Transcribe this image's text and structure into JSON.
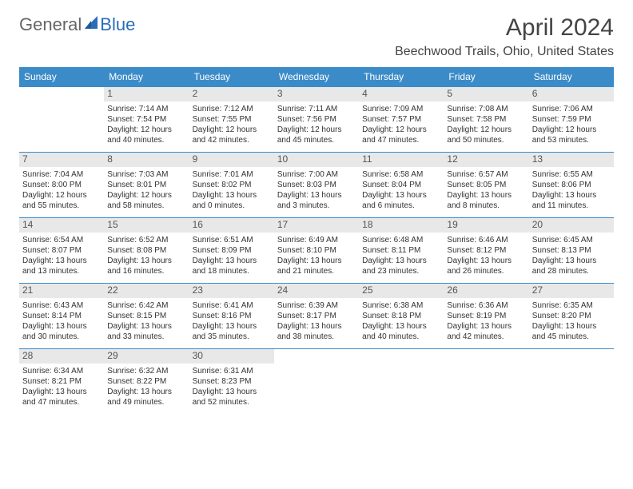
{
  "logo": {
    "text1": "General",
    "text2": "Blue"
  },
  "title": "April 2024",
  "location": "Beechwood Trails, Ohio, United States",
  "colors": {
    "header_bg": "#3b8bc9",
    "header_text": "#ffffff",
    "daynum_bg": "#e8e8e8",
    "rule": "#3b8bc9",
    "logo_blue": "#2a6db8",
    "text": "#333333"
  },
  "weekdays": [
    "Sunday",
    "Monday",
    "Tuesday",
    "Wednesday",
    "Thursday",
    "Friday",
    "Saturday"
  ],
  "grid": {
    "leading_blanks": 0,
    "days": [
      null,
      {
        "n": "1",
        "sr": "7:14 AM",
        "ss": "7:54 PM",
        "dl": "12 hours and 40 minutes."
      },
      {
        "n": "2",
        "sr": "7:12 AM",
        "ss": "7:55 PM",
        "dl": "12 hours and 42 minutes."
      },
      {
        "n": "3",
        "sr": "7:11 AM",
        "ss": "7:56 PM",
        "dl": "12 hours and 45 minutes."
      },
      {
        "n": "4",
        "sr": "7:09 AM",
        "ss": "7:57 PM",
        "dl": "12 hours and 47 minutes."
      },
      {
        "n": "5",
        "sr": "7:08 AM",
        "ss": "7:58 PM",
        "dl": "12 hours and 50 minutes."
      },
      {
        "n": "6",
        "sr": "7:06 AM",
        "ss": "7:59 PM",
        "dl": "12 hours and 53 minutes."
      },
      {
        "n": "7",
        "sr": "7:04 AM",
        "ss": "8:00 PM",
        "dl": "12 hours and 55 minutes."
      },
      {
        "n": "8",
        "sr": "7:03 AM",
        "ss": "8:01 PM",
        "dl": "12 hours and 58 minutes."
      },
      {
        "n": "9",
        "sr": "7:01 AM",
        "ss": "8:02 PM",
        "dl": "13 hours and 0 minutes."
      },
      {
        "n": "10",
        "sr": "7:00 AM",
        "ss": "8:03 PM",
        "dl": "13 hours and 3 minutes."
      },
      {
        "n": "11",
        "sr": "6:58 AM",
        "ss": "8:04 PM",
        "dl": "13 hours and 6 minutes."
      },
      {
        "n": "12",
        "sr": "6:57 AM",
        "ss": "8:05 PM",
        "dl": "13 hours and 8 minutes."
      },
      {
        "n": "13",
        "sr": "6:55 AM",
        "ss": "8:06 PM",
        "dl": "13 hours and 11 minutes."
      },
      {
        "n": "14",
        "sr": "6:54 AM",
        "ss": "8:07 PM",
        "dl": "13 hours and 13 minutes."
      },
      {
        "n": "15",
        "sr": "6:52 AM",
        "ss": "8:08 PM",
        "dl": "13 hours and 16 minutes."
      },
      {
        "n": "16",
        "sr": "6:51 AM",
        "ss": "8:09 PM",
        "dl": "13 hours and 18 minutes."
      },
      {
        "n": "17",
        "sr": "6:49 AM",
        "ss": "8:10 PM",
        "dl": "13 hours and 21 minutes."
      },
      {
        "n": "18",
        "sr": "6:48 AM",
        "ss": "8:11 PM",
        "dl": "13 hours and 23 minutes."
      },
      {
        "n": "19",
        "sr": "6:46 AM",
        "ss": "8:12 PM",
        "dl": "13 hours and 26 minutes."
      },
      {
        "n": "20",
        "sr": "6:45 AM",
        "ss": "8:13 PM",
        "dl": "13 hours and 28 minutes."
      },
      {
        "n": "21",
        "sr": "6:43 AM",
        "ss": "8:14 PM",
        "dl": "13 hours and 30 minutes."
      },
      {
        "n": "22",
        "sr": "6:42 AM",
        "ss": "8:15 PM",
        "dl": "13 hours and 33 minutes."
      },
      {
        "n": "23",
        "sr": "6:41 AM",
        "ss": "8:16 PM",
        "dl": "13 hours and 35 minutes."
      },
      {
        "n": "24",
        "sr": "6:39 AM",
        "ss": "8:17 PM",
        "dl": "13 hours and 38 minutes."
      },
      {
        "n": "25",
        "sr": "6:38 AM",
        "ss": "8:18 PM",
        "dl": "13 hours and 40 minutes."
      },
      {
        "n": "26",
        "sr": "6:36 AM",
        "ss": "8:19 PM",
        "dl": "13 hours and 42 minutes."
      },
      {
        "n": "27",
        "sr": "6:35 AM",
        "ss": "8:20 PM",
        "dl": "13 hours and 45 minutes."
      },
      {
        "n": "28",
        "sr": "6:34 AM",
        "ss": "8:21 PM",
        "dl": "13 hours and 47 minutes."
      },
      {
        "n": "29",
        "sr": "6:32 AM",
        "ss": "8:22 PM",
        "dl": "13 hours and 49 minutes."
      },
      {
        "n": "30",
        "sr": "6:31 AM",
        "ss": "8:23 PM",
        "dl": "13 hours and 52 minutes."
      },
      null,
      null,
      null,
      null
    ]
  },
  "labels": {
    "sunrise": "Sunrise:",
    "sunset": "Sunset:",
    "daylight": "Daylight:"
  }
}
